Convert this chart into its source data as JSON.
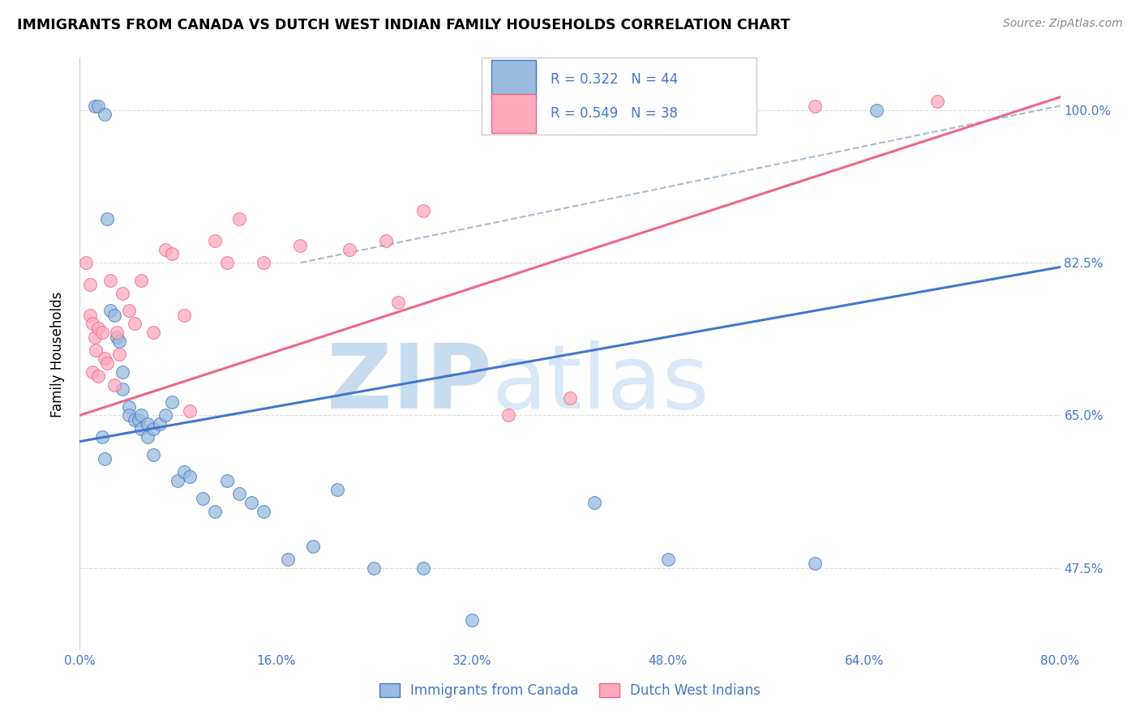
{
  "title": "IMMIGRANTS FROM CANADA VS DUTCH WEST INDIAN FAMILY HOUSEHOLDS CORRELATION CHART",
  "source": "Source: ZipAtlas.com",
  "ylabel": "Family Households",
  "legend_label1": "Immigrants from Canada",
  "legend_label2": "Dutch West Indians",
  "R1": 0.322,
  "N1": 44,
  "R2": 0.549,
  "N2": 38,
  "xmin": 0.0,
  "xmax": 80.0,
  "ymin": 38.0,
  "ymax": 106.0,
  "yticks": [
    47.5,
    65.0,
    82.5,
    100.0
  ],
  "xticks": [
    0.0,
    16.0,
    32.0,
    48.0,
    64.0,
    80.0
  ],
  "color_blue": "#99BBDD",
  "color_pink": "#FFAABC",
  "color_blue_line": "#4477CC",
  "color_pink_line": "#EE6688",
  "color_dashed": "#AABBCC",
  "watermark_color": "#D8E8F8",
  "watermark_text": "ZIPatlas",
  "blue_line_x0": 0.0,
  "blue_line_y0": 62.0,
  "blue_line_x1": 80.0,
  "blue_line_y1": 82.0,
  "pink_line_x0": 0.0,
  "pink_line_y0": 65.0,
  "pink_line_x1": 80.0,
  "pink_line_y1": 101.5,
  "dash_line_x0": 18.0,
  "dash_line_y0": 82.5,
  "dash_line_x1": 80.0,
  "dash_line_y1": 100.5,
  "blue_scatter_x": [
    1.2,
    1.5,
    2.0,
    2.2,
    2.5,
    2.8,
    3.0,
    3.2,
    3.5,
    3.5,
    4.0,
    4.0,
    4.5,
    4.8,
    5.0,
    5.0,
    5.5,
    5.5,
    6.0,
    6.0,
    6.5,
    7.0,
    7.5,
    8.0,
    8.5,
    9.0,
    10.0,
    11.0,
    12.0,
    13.0,
    14.0,
    15.0,
    17.0,
    19.0,
    21.0,
    24.0,
    28.0,
    32.0,
    42.0,
    48.0,
    60.0,
    65.0,
    1.8,
    2.0
  ],
  "blue_scatter_y": [
    100.5,
    100.5,
    99.5,
    87.5,
    77.0,
    76.5,
    74.0,
    73.5,
    70.0,
    68.0,
    66.0,
    65.0,
    64.5,
    64.5,
    65.0,
    63.5,
    64.0,
    62.5,
    63.5,
    60.5,
    64.0,
    65.0,
    66.5,
    57.5,
    58.5,
    58.0,
    55.5,
    54.0,
    57.5,
    56.0,
    55.0,
    54.0,
    48.5,
    50.0,
    56.5,
    47.5,
    47.5,
    41.5,
    55.0,
    48.5,
    48.0,
    100.0,
    62.5,
    60.0
  ],
  "pink_scatter_x": [
    0.5,
    0.8,
    0.8,
    1.0,
    1.0,
    1.2,
    1.3,
    1.5,
    1.5,
    1.8,
    2.0,
    2.2,
    2.5,
    2.8,
    3.0,
    3.2,
    3.5,
    4.0,
    4.5,
    5.0,
    6.0,
    7.0,
    7.5,
    8.5,
    9.0,
    11.0,
    12.0,
    13.0,
    15.0,
    18.0,
    22.0,
    25.0,
    26.0,
    28.0,
    35.0,
    40.0,
    60.0,
    70.0
  ],
  "pink_scatter_y": [
    82.5,
    80.0,
    76.5,
    75.5,
    70.0,
    74.0,
    72.5,
    75.0,
    69.5,
    74.5,
    71.5,
    71.0,
    80.5,
    68.5,
    74.5,
    72.0,
    79.0,
    77.0,
    75.5,
    80.5,
    74.5,
    84.0,
    83.5,
    76.5,
    65.5,
    85.0,
    82.5,
    87.5,
    82.5,
    84.5,
    84.0,
    85.0,
    78.0,
    88.5,
    65.0,
    67.0,
    100.5,
    101.0
  ]
}
